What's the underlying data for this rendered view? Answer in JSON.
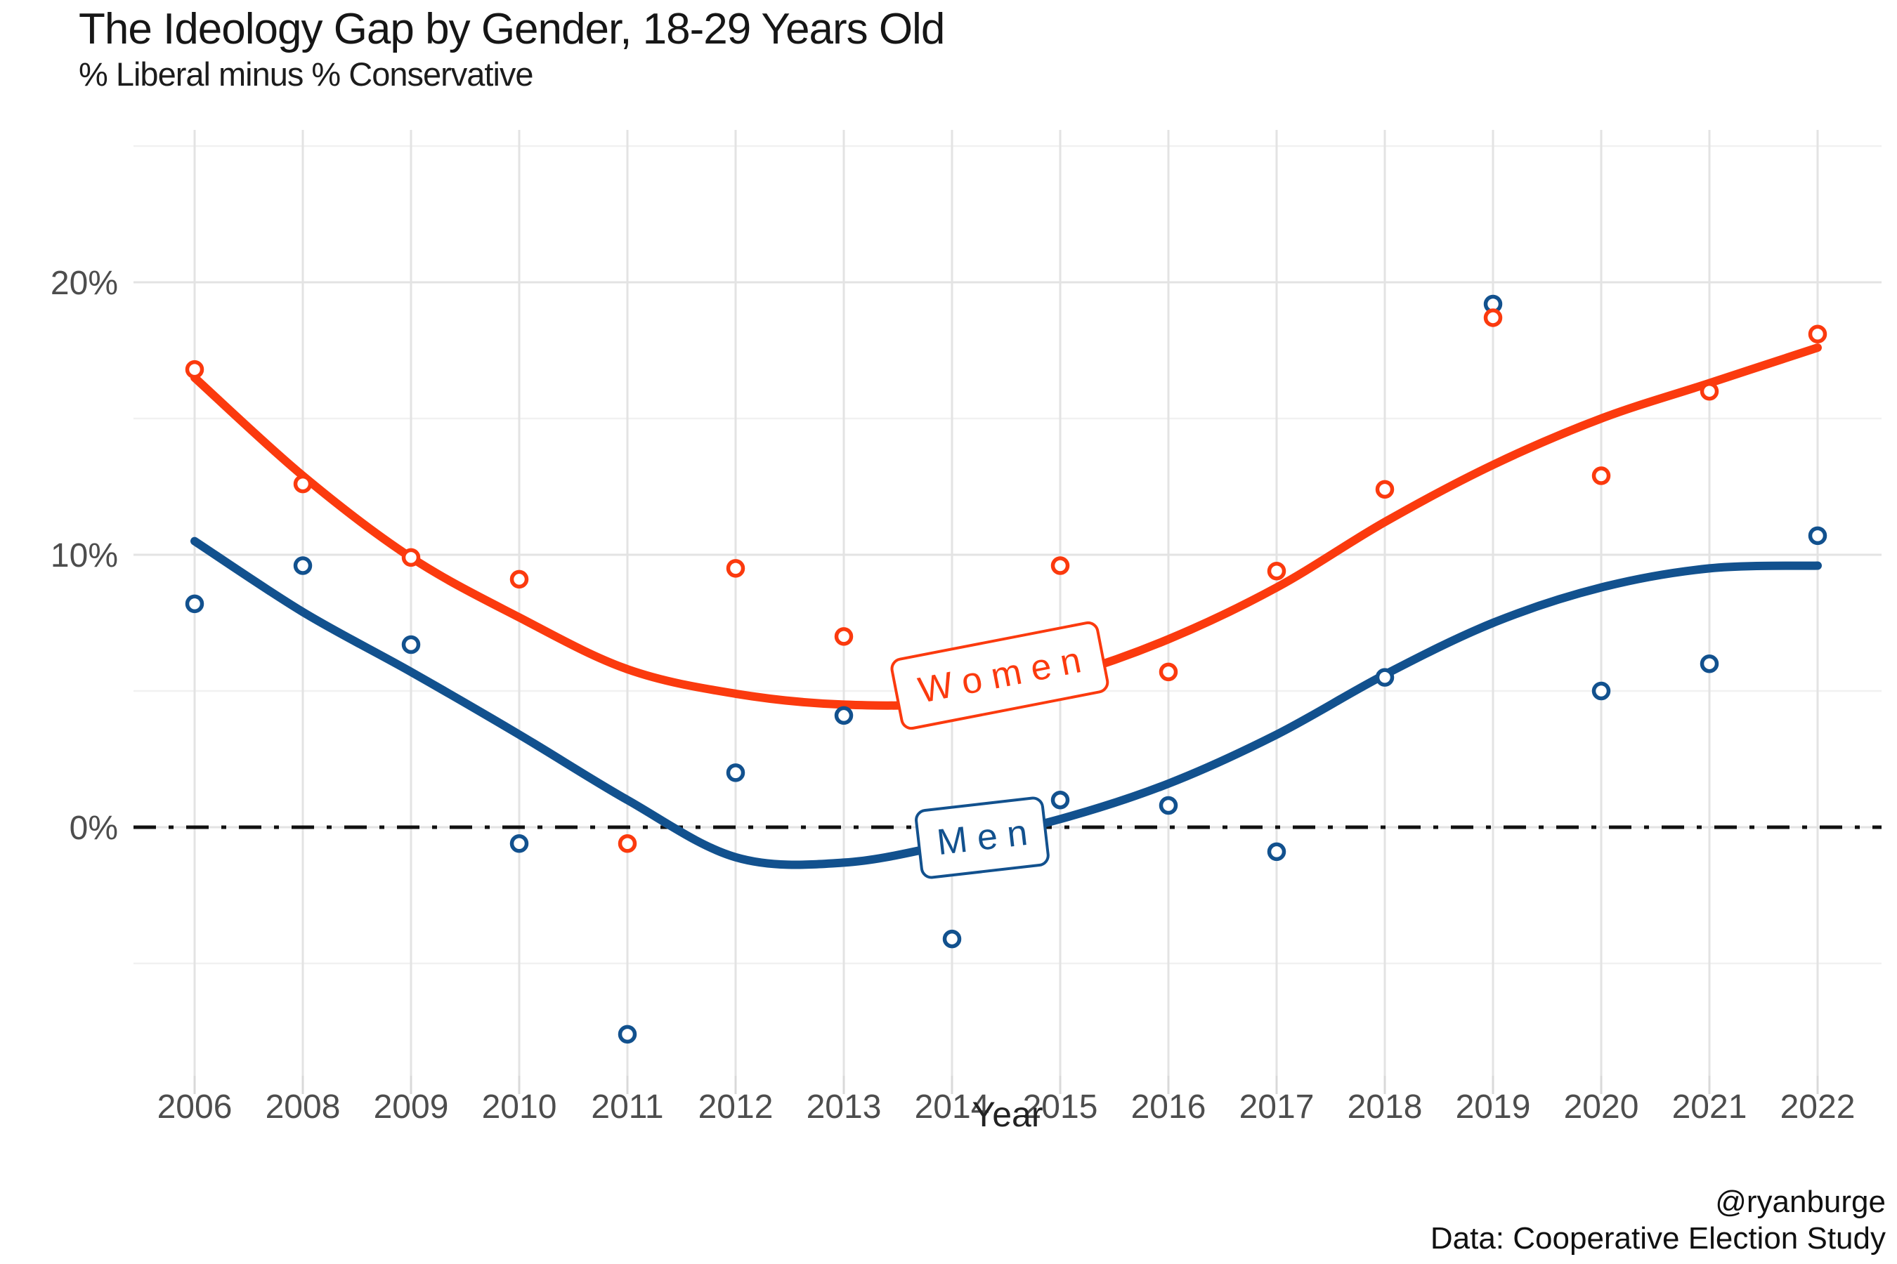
{
  "header": {
    "title": "The Ideology Gap by Gender, 18-29 Years Old",
    "subtitle": "% Liberal minus % Conservative"
  },
  "caption": {
    "handle": "@ryanburge",
    "source": "Data: Cooperative Election Study"
  },
  "chart_data": {
    "type": "scatter",
    "title": "The Ideology Gap by Gender, 18-29 Years Old",
    "subtitle": "% Liberal minus % Conservative",
    "xlabel": "Year",
    "ylabel": "% Liberal minus % Conservative",
    "x_categories": [
      "2006",
      "2008",
      "2009",
      "2010",
      "2011",
      "2012",
      "2013",
      "2014",
      "2015",
      "2016",
      "2017",
      "2018",
      "2019",
      "2020",
      "2021",
      "2022"
    ],
    "y_axis": {
      "major_ticks": [
        {
          "label": "20%",
          "value": 20
        },
        {
          "label": "10%",
          "value": 10
        },
        {
          "label": "0%",
          "value": 0
        }
      ],
      "minor_values": [
        25,
        15,
        5,
        -5
      ],
      "range": [
        -9,
        25.5
      ],
      "unit": "percent"
    },
    "zero_reference_line": true,
    "grid": true,
    "legend": "direct-labels-on-curves",
    "series": [
      {
        "name": "Women",
        "color": "#FB3A0E",
        "marker": "open-circle",
        "values": [
          16.8,
          12.6,
          9.9,
          9.1,
          -0.6,
          9.5,
          7.0,
          null,
          9.6,
          5.7,
          9.4,
          12.4,
          18.7,
          12.9,
          16.0,
          18.1
        ],
        "trend": [
          16.5,
          12.9,
          9.9,
          7.7,
          5.8,
          4.9,
          4.5,
          4.6,
          5.5,
          6.9,
          8.8,
          11.2,
          13.3,
          15.0,
          16.3,
          17.6
        ]
      },
      {
        "name": "Men",
        "color": "#12518E",
        "marker": "open-circle",
        "values": [
          8.2,
          9.6,
          6.7,
          -0.6,
          -7.6,
          2.0,
          4.1,
          -4.1,
          1.0,
          0.8,
          -0.9,
          5.5,
          19.2,
          5.0,
          6.0,
          10.7
        ],
        "trend": [
          10.5,
          7.9,
          5.7,
          3.4,
          1.0,
          -1.1,
          -1.3,
          -0.6,
          0.3,
          1.6,
          3.4,
          5.6,
          7.5,
          8.8,
          9.5,
          9.6
        ]
      }
    ]
  },
  "colors": {
    "background": "#FFFFFF",
    "grid_major": "#E3E3E3",
    "grid_minor": "#F1F1F1",
    "axis_tick": "#D9D9D9",
    "axis_text": "#4D4D4D",
    "zero_line": "#111111",
    "women": "#FB3A0E",
    "men": "#12518E"
  }
}
